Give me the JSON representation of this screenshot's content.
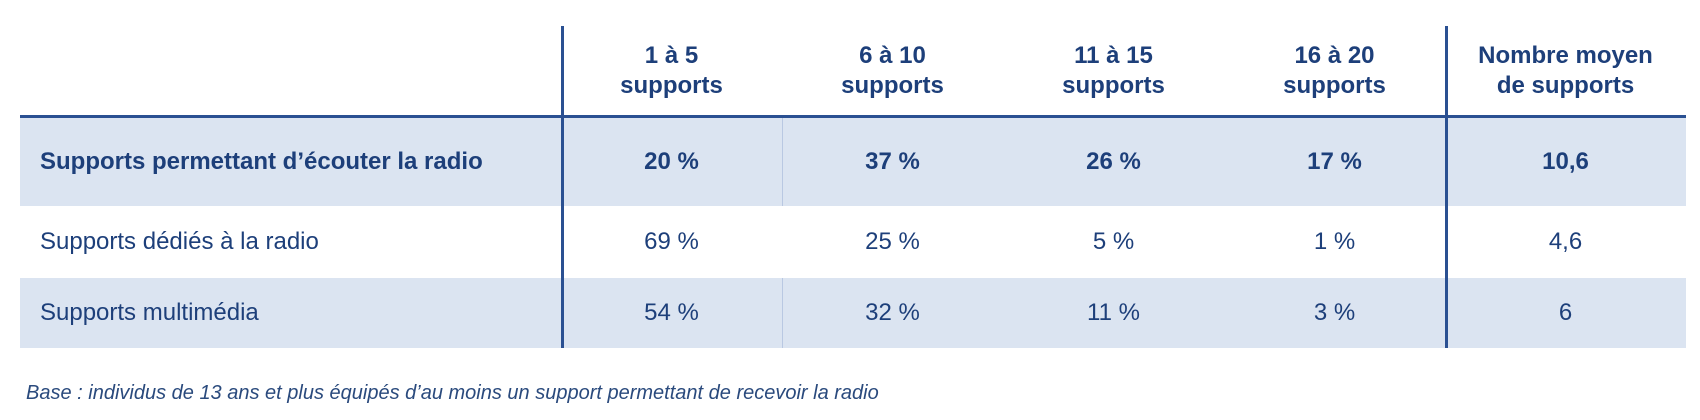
{
  "chart_data": {
    "type": "table",
    "columns": [
      "",
      "1 à 5\nsupports",
      "6 à 10\nsupports",
      "11 à 15\nsupports",
      "16 à 20\nsupports",
      "Nombre moyen\nde supports"
    ],
    "rows": [
      {
        "label": "Supports permettant d’écouter la radio",
        "values": [
          "20 %",
          "37 %",
          "26 %",
          "17 %",
          "10,6"
        ],
        "bold": true
      },
      {
        "label": "Supports dédiés à la radio",
        "values": [
          "69 %",
          "25 %",
          "5 %",
          "1 %",
          "4,6"
        ],
        "bold": false
      },
      {
        "label": "Supports multimédia",
        "values": [
          "54 %",
          "32 %",
          "11 %",
          "3 %",
          "6"
        ],
        "bold": false
      }
    ],
    "footnote": "Base : individus de 13 ans et plus équipés d’au moins un support permettant de recevoir la radio"
  },
  "colors": {
    "text": "#1d3f7a",
    "rule": "#2a5092",
    "row_shade": "#dbe4f1"
  }
}
